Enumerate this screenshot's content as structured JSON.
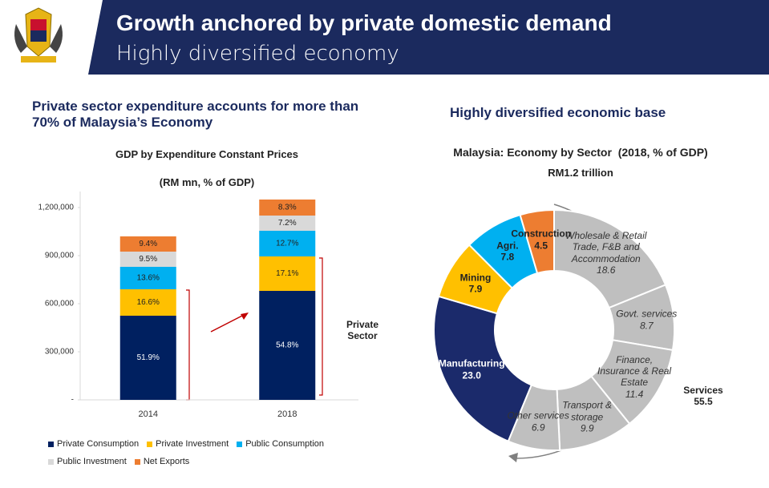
{
  "header": {
    "title": "Growth anchored by private domestic demand",
    "subtitle": "Highly diversified economy"
  },
  "left_heading": "Private sector expenditure accounts for more than 70% of Malaysia’s Economy",
  "right_heading": "Highly diversified economic base",
  "chart_data": [
    {
      "type": "bar",
      "stacked": true,
      "title": "GDP by Expenditure Constant Prices",
      "subtitle": "(RM mn, % of GDP)",
      "categories": [
        "2014",
        "2018"
      ],
      "series": [
        {
          "name": "Private Consumption",
          "color": "#002060",
          "values": [
            525000,
            680000
          ],
          "share_labels": [
            "51.9%",
            "54.8%"
          ]
        },
        {
          "name": "Private Investment",
          "color": "#ffc000",
          "values": [
            165000,
            215000
          ],
          "share_labels": [
            "16.6%",
            "17.1%"
          ]
        },
        {
          "name": "Public Consumption",
          "color": "#00b0f0",
          "values": [
            140000,
            160000
          ],
          "share_labels": [
            "13.6%",
            "12.7%"
          ]
        },
        {
          "name": "Public Investment",
          "color": "#d9d9d9",
          "values": [
            95000,
            95000
          ],
          "share_labels": [
            "9.5%",
            "7.2%"
          ]
        },
        {
          "name": "Net Exports",
          "color": "#ed7d31",
          "values": [
            95000,
            100000
          ],
          "share_labels": [
            "9.4%",
            "8.3%"
          ]
        }
      ],
      "ylim": [
        0,
        1300000
      ],
      "yticks": [
        {
          "value": 0,
          "label": "-"
        },
        {
          "value": 300000,
          "label": "300,000"
        },
        {
          "value": 600000,
          "label": "600,000"
        },
        {
          "value": 900000,
          "label": "900,000"
        },
        {
          "value": 1200000,
          "label": "1,200,000"
        }
      ],
      "annotations": [
        "Private Sector"
      ],
      "legend": "bottom"
    },
    {
      "type": "donut",
      "title": "Malaysia: Economy by Sector  (2018, % of GDP)",
      "subtitle": "RM1.2 trillion",
      "categories": [
        "Wholesale & Retail Trade, F&B and Accommodation",
        "Govt. services",
        "Finance, Insurance & Real Estate",
        "Transport & storage",
        "Other services",
        "Manufacturing",
        "Mining",
        "Agri.",
        "Construction"
      ],
      "values": [
        18.6,
        8.7,
        11.4,
        9.9,
        6.9,
        23.0,
        7.9,
        7.8,
        4.5
      ],
      "value_labels": [
        "18.6",
        "8.7",
        "11.4",
        "9.9",
        "6.9",
        "23.0",
        "7.9",
        "7.8",
        "4.5"
      ],
      "colors": [
        "#bfbfbf",
        "#bfbfbf",
        "#bfbfbf",
        "#bfbfbf",
        "#bfbfbf",
        "#1b2a6b",
        "#ffc000",
        "#00b0f0",
        "#ed7d31"
      ],
      "group": {
        "label": "Services",
        "value": 55.5
      }
    }
  ]
}
